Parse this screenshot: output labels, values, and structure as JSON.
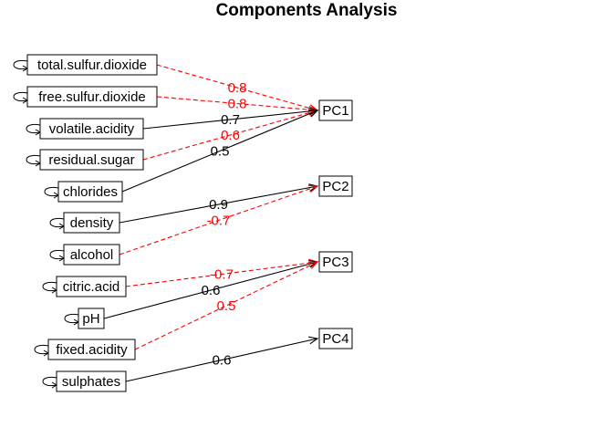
{
  "title": "Components Analysis",
  "variables": [
    "total.sulfur.dioxide",
    "free.sulfur.dioxide",
    "volatile.acidity",
    "residual.sugar",
    "chlorides",
    "density",
    "alcohol",
    "citric.acid",
    "pH",
    "fixed.acidity",
    "sulphates"
  ],
  "components": [
    "PC1",
    "PC2",
    "PC3",
    "PC4"
  ],
  "loadings": [
    {
      "from": "total.sulfur.dioxide",
      "to": "PC1",
      "label": "0.8",
      "sign": "negative"
    },
    {
      "from": "free.sulfur.dioxide",
      "to": "PC1",
      "label": "0.8",
      "sign": "negative"
    },
    {
      "from": "volatile.acidity",
      "to": "PC1",
      "label": "0.7",
      "sign": "positive"
    },
    {
      "from": "residual.sugar",
      "to": "PC1",
      "label": "0.6",
      "sign": "negative"
    },
    {
      "from": "chlorides",
      "to": "PC1",
      "label": "0.5",
      "sign": "positive"
    },
    {
      "from": "density",
      "to": "PC2",
      "label": "0.9",
      "sign": "positive"
    },
    {
      "from": "alcohol",
      "to": "PC2",
      "label": "-0.7",
      "sign": "negative"
    },
    {
      "from": "citric.acid",
      "to": "PC3",
      "label": "-0.7",
      "sign": "negative"
    },
    {
      "from": "pH",
      "to": "PC3",
      "label": "0.6",
      "sign": "positive"
    },
    {
      "from": "fixed.acidity",
      "to": "PC3",
      "label": "0.5",
      "sign": "negative"
    },
    {
      "from": "sulphates",
      "to": "PC4",
      "label": "0.6",
      "sign": "positive"
    }
  ],
  "colors": {
    "positive": "#000000",
    "negative": "#ff0000"
  }
}
